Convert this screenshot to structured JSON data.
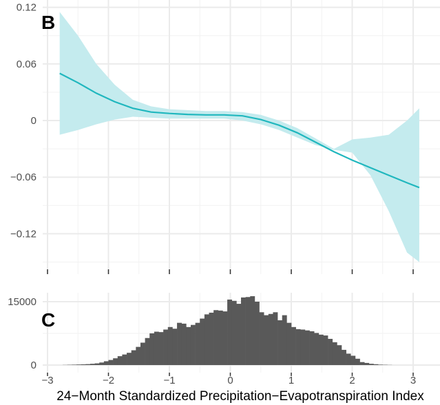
{
  "chart_data": [
    {
      "panel": "B",
      "type": "line",
      "xlabel": "",
      "ylabel": "",
      "xlim": [
        -3.2,
        3.3
      ],
      "ylim": [
        -0.16,
        0.12
      ],
      "y_ticks": [
        0.12,
        0.06,
        0,
        -0.06,
        -0.12
      ],
      "y_tick_labels": [
        "0.12",
        "0.06",
        "0",
        "−0.06",
        "−0.12"
      ],
      "x_ticks": [
        -3,
        -2,
        -1,
        0,
        1,
        2,
        3
      ],
      "grid": true,
      "line_color": "#20b7be",
      "band_color": "#c4ebee",
      "series": [
        {
          "x": [
            -2.8,
            -2.5,
            -2.2,
            -1.9,
            -1.6,
            -1.3,
            -1.0,
            -0.7,
            -0.4,
            -0.1,
            0.2,
            0.5,
            0.8,
            1.1,
            1.4,
            1.7,
            2.0,
            2.3,
            2.6,
            2.9,
            3.1
          ],
          "y": [
            0.05,
            0.04,
            0.029,
            0.02,
            0.013,
            0.009,
            0.0075,
            0.0065,
            0.006,
            0.006,
            0.005,
            0.001,
            -0.005,
            -0.013,
            -0.023,
            -0.033,
            -0.042,
            -0.05,
            -0.058,
            -0.066,
            -0.071
          ],
          "lower": [
            -0.015,
            -0.01,
            -0.004,
            0.001,
            0.004,
            0.003,
            0.002,
            0.002,
            0.002,
            0.002,
            0.0,
            -0.004,
            -0.01,
            -0.018,
            -0.026,
            -0.031,
            -0.034,
            -0.058,
            -0.096,
            -0.14,
            -0.15
          ],
          "upper": [
            0.115,
            0.09,
            0.06,
            0.038,
            0.022,
            0.015,
            0.012,
            0.011,
            0.01,
            0.01,
            0.009,
            0.006,
            0.0,
            -0.008,
            -0.019,
            -0.03,
            -0.02,
            -0.018,
            -0.015,
            0.0,
            0.013
          ]
        }
      ]
    },
    {
      "panel": "C",
      "type": "bar",
      "xlabel": "24−Month Standardized Precipitation−Evapotranspiration Index",
      "ylabel": "",
      "xlim": [
        -3.2,
        3.3
      ],
      "ylim": [
        0,
        17500
      ],
      "y_ticks": [
        15000,
        0
      ],
      "y_tick_labels": [
        "15000",
        "0"
      ],
      "x_ticks": [
        -3,
        -2,
        -1,
        0,
        1,
        2,
        3
      ],
      "x_tick_labels": [
        "−3",
        "−2",
        "−1",
        "0",
        "1",
        "2",
        "3"
      ],
      "grid": true,
      "bar_color": "#595959",
      "bin_start": -2.75,
      "bin_width": 0.075,
      "values": [
        30,
        60,
        90,
        130,
        170,
        220,
        300,
        400,
        600,
        900,
        1200,
        1600,
        2100,
        2500,
        2900,
        3500,
        4300,
        5300,
        6400,
        7500,
        7900,
        7800,
        8400,
        9000,
        8600,
        10000,
        9800,
        9000,
        9500,
        10000,
        11000,
        12000,
        12400,
        13000,
        12900,
        12700,
        15500,
        15200,
        14500,
        16000,
        16100,
        16300,
        15000,
        12500,
        11800,
        12100,
        12500,
        10600,
        11800,
        10000,
        9000,
        8500,
        8400,
        8200,
        8000,
        7600,
        7200,
        7000,
        6200,
        5400,
        4700,
        3600,
        2700,
        2200,
        1500,
        700,
        500,
        300,
        200,
        100,
        60,
        30
      ]
    }
  ],
  "panel_labels": {
    "b": "B",
    "c": "C"
  },
  "x_axis_title": "24−Month Standardized Precipitation−Evapotranspiration Index"
}
